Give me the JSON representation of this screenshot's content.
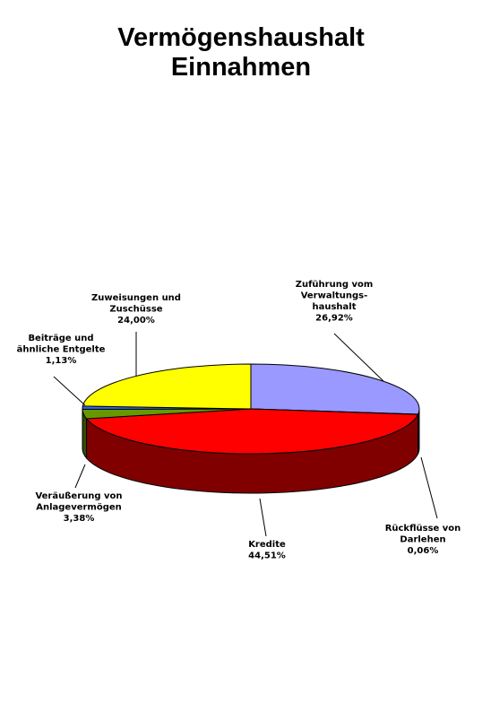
{
  "chart_data": {
    "type": "pie",
    "title_lines": [
      "Vermögenshaushalt",
      "Einnahmen"
    ],
    "slices": [
      {
        "label_lines": [
          "Zuführung vom",
          "Verwaltungs-",
          "haushalt"
        ],
        "pct_text": "26,92%",
        "value": 26.92,
        "color": "#9999ff"
      },
      {
        "label_lines": [
          "Rückflüsse von",
          "Darlehen"
        ],
        "pct_text": "0,06%",
        "value": 0.06,
        "color": "#000080"
      },
      {
        "label_lines": [
          "Kredite"
        ],
        "pct_text": "44,51%",
        "value": 44.51,
        "color": "#ff0000"
      },
      {
        "label_lines": [
          "Veräußerung von",
          "Anlagevermögen"
        ],
        "pct_text": "3,38%",
        "value": 3.38,
        "color": "#669900"
      },
      {
        "label_lines": [
          "Beiträge und",
          "ähnliche Entgelte"
        ],
        "pct_text": "1,13%",
        "value": 1.13,
        "color": "#3366ff"
      },
      {
        "label_lines": [
          "Zuweisungen und",
          "Zuschüsse"
        ],
        "pct_text": "24,00%",
        "value": 24.0,
        "color": "#ffff00"
      }
    ]
  }
}
